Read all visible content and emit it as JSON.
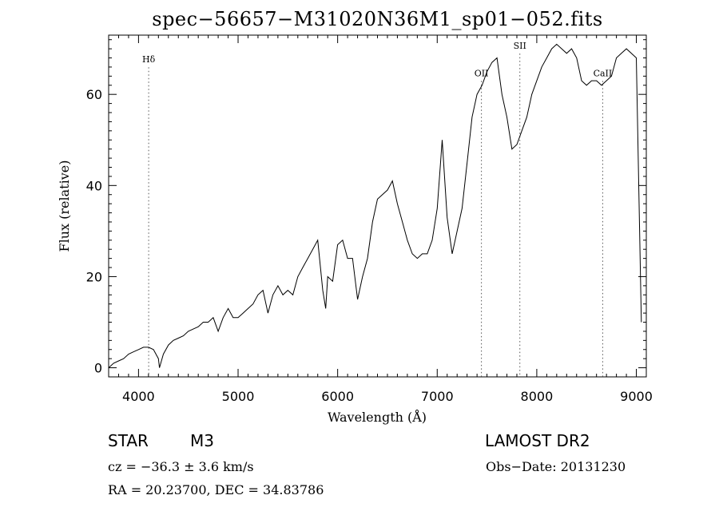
{
  "chart_data": {
    "type": "line",
    "title": "spec−56657−M31020N36M1_sp01−052.fits",
    "xlabel": "Wavelength (Å)",
    "ylabel": "Flux (relative)",
    "xlim": [
      3700,
      9100
    ],
    "ylim": [
      -2,
      73
    ],
    "xticks": [
      4000,
      5000,
      6000,
      7000,
      8000,
      9000
    ],
    "yticks": [
      0,
      20,
      40,
      60
    ],
    "grid": false,
    "line_color": "#000000",
    "marker_color": "#555555",
    "lines": [
      {
        "label": "Hδ",
        "x": 4102,
        "label_y": 67
      },
      {
        "label": "OII",
        "x": 7444,
        "label_y": 64
      },
      {
        "label": "SII",
        "x": 7830,
        "label_y": 70
      },
      {
        "label": "CaII",
        "x": 8662,
        "label_y": 64
      }
    ],
    "series": [
      {
        "x": [
          3700,
          3750,
          3800,
          3850,
          3900,
          3950,
          4000,
          4050,
          4100,
          4150,
          4200,
          4210,
          4250,
          4300,
          4350,
          4400,
          4450,
          4500,
          4550,
          4600,
          4650,
          4700,
          4750,
          4800,
          4850,
          4900,
          4950,
          5000,
          5050,
          5100,
          5150,
          5200,
          5250,
          5300,
          5350,
          5400,
          5450,
          5500,
          5550,
          5600,
          5650,
          5700,
          5750,
          5800,
          5850,
          5880,
          5900,
          5950,
          6000,
          6050,
          6100,
          6150,
          6200,
          6250,
          6300,
          6350,
          6400,
          6450,
          6500,
          6550,
          6600,
          6650,
          6700,
          6750,
          6800,
          6850,
          6900,
          6950,
          7000,
          7050,
          7100,
          7150,
          7200,
          7250,
          7300,
          7350,
          7400,
          7450,
          7500,
          7550,
          7600,
          7650,
          7700,
          7750,
          7800,
          7850,
          7900,
          7950,
          8000,
          8050,
          8100,
          8150,
          8200,
          8250,
          8300,
          8350,
          8400,
          8450,
          8500,
          8550,
          8600,
          8650,
          8700,
          8750,
          8800,
          8850,
          8900,
          8950,
          9000,
          9050
        ],
        "y": [
          0,
          1,
          1.5,
          2,
          3,
          3.5,
          4,
          4.5,
          4.5,
          4,
          2,
          0,
          3,
          5,
          6,
          6.5,
          7,
          8,
          8.5,
          9,
          10,
          10,
          11,
          8,
          11,
          13,
          11,
          11,
          12,
          13,
          14,
          16,
          17,
          12,
          16,
          18,
          16,
          17,
          16,
          20,
          22,
          24,
          26,
          28,
          17,
          13,
          20,
          19,
          27,
          28,
          24,
          24,
          15,
          20,
          24,
          32,
          37,
          38,
          39,
          41,
          36,
          32,
          28,
          25,
          24,
          25,
          25,
          28,
          35,
          50,
          33,
          25,
          30,
          35,
          45,
          55,
          60,
          62,
          65,
          67,
          68,
          60,
          55,
          48,
          49,
          52,
          55,
          60,
          63,
          66,
          68,
          70,
          71,
          70,
          69,
          70,
          68,
          63,
          62,
          63,
          63,
          62,
          63,
          64,
          68,
          69,
          70,
          69,
          68,
          10
        ]
      }
    ],
    "footer": {
      "object_class": "STAR",
      "object_subclass": "M3",
      "survey": "LAMOST DR2",
      "cz": "cz = −36.3 ± 3.6 km/s",
      "obs_date": "Obs−Date: 20131230",
      "ra_dec": "RA =  20.23700, DEC =  34.83786"
    }
  }
}
